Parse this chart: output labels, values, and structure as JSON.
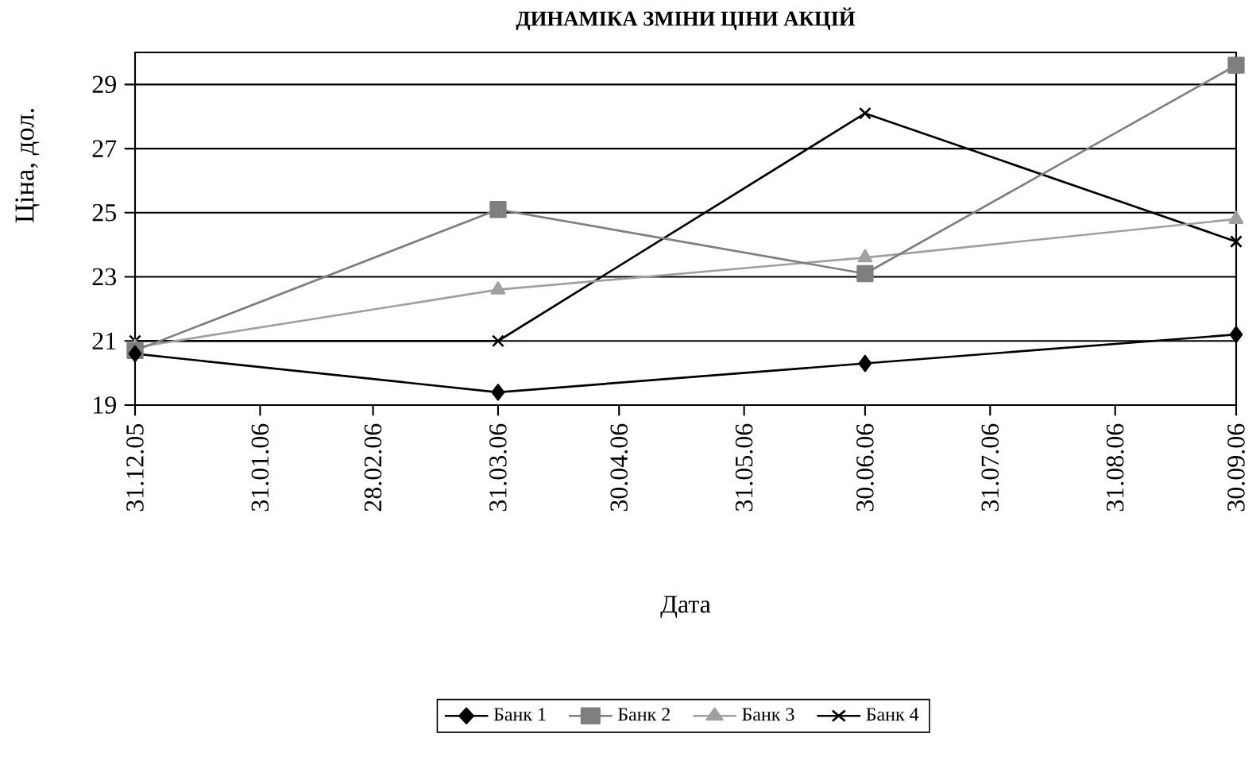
{
  "chart_data": {
    "type": "line",
    "title": "ДИНАМІКА ЗМІНИ ЦІНИ АКЦІЙ",
    "xlabel": "Дата",
    "ylabel": "Ціна, дол.",
    "x": [
      "2005-12-31",
      "2006-03-31",
      "2006-06-30",
      "2006-09-30"
    ],
    "xlim": [
      "2005-12-31",
      "2006-09-30"
    ],
    "xticks": [
      {
        "value": "2005-12-31",
        "label": "31.12.05"
      },
      {
        "value": "2006-01-31",
        "label": "31.01.06"
      },
      {
        "value": "2006-02-28",
        "label": "28.02.06"
      },
      {
        "value": "2006-03-31",
        "label": "31.03.06"
      },
      {
        "value": "2006-04-30",
        "label": "30.04.06"
      },
      {
        "value": "2006-05-31",
        "label": "31.05.06"
      },
      {
        "value": "2006-06-30",
        "label": "30.06.06"
      },
      {
        "value": "2006-07-31",
        "label": "31.07.06"
      },
      {
        "value": "2006-08-31",
        "label": "31.08.06"
      },
      {
        "value": "2006-09-30",
        "label": "30.09.06"
      }
    ],
    "ylim": [
      19,
      30
    ],
    "yticks": [
      19,
      21,
      23,
      25,
      27,
      29
    ],
    "grid": "y",
    "legend": "bottom",
    "series": [
      {
        "name": "Банк 1",
        "color": "#000000",
        "marker": "diamond",
        "values": [
          20.6,
          19.4,
          20.3,
          21.2
        ]
      },
      {
        "name": "Банк 2",
        "color": "#7f7f7f",
        "marker": "square",
        "values": [
          20.7,
          25.1,
          23.1,
          29.6
        ]
      },
      {
        "name": "Банк 3",
        "color": "#a0a0a0",
        "marker": "triangle",
        "values": [
          20.8,
          22.6,
          23.6,
          24.8
        ]
      },
      {
        "name": "Банк 4",
        "color": "#000000",
        "marker": "cross",
        "values": [
          21.0,
          21.0,
          28.1,
          24.1
        ]
      }
    ]
  }
}
